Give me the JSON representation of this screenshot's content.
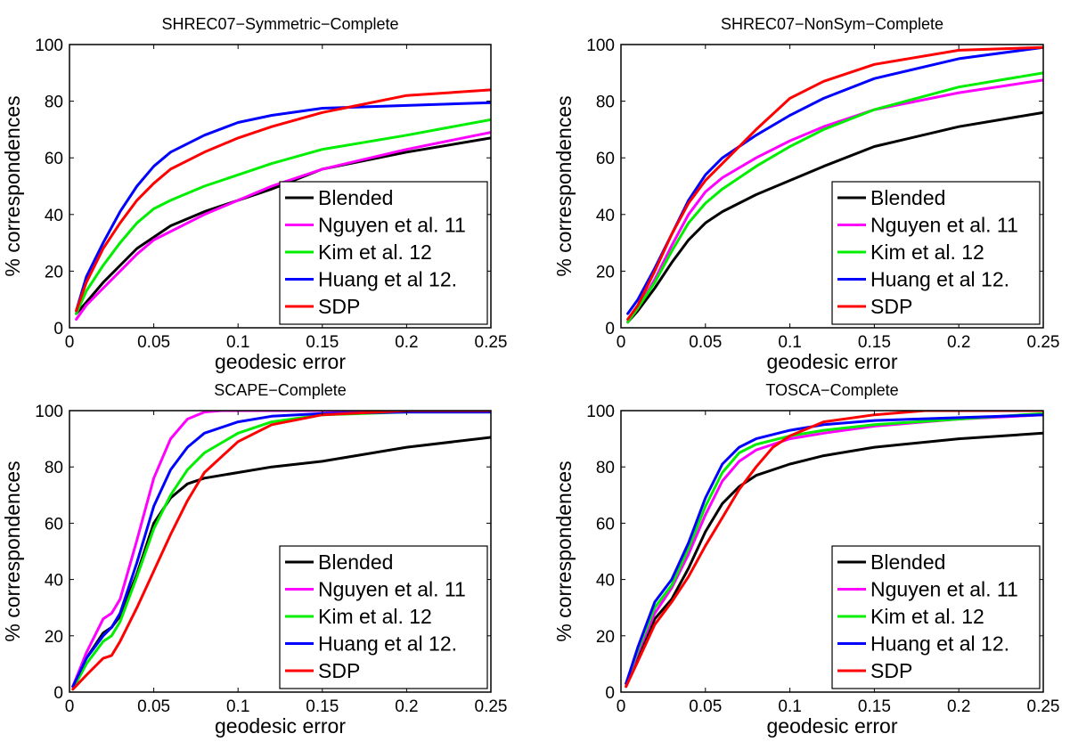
{
  "colors": {
    "Blended": "#000000",
    "Nguyen et al. 11": "#ff00ff",
    "Kim et al. 12": "#00ee00",
    "Huang et al 12.": "#0000ff",
    "SDP": "#ff0000"
  },
  "chart_data": [
    {
      "type": "line",
      "title": "SHREC07−Symmetric−Complete",
      "xlabel": "geodesic error",
      "ylabel": "% correspondences",
      "xlim": [
        0,
        0.25
      ],
      "ylim": [
        0,
        100
      ],
      "xticks": [
        "0",
        "0.05",
        "0.1",
        "0.15",
        "0.2",
        "0.25"
      ],
      "yticks": [
        "0",
        "20",
        "40",
        "60",
        "80",
        "100"
      ],
      "legend_position": "bottom-right",
      "grid": false,
      "series": [
        {
          "name": "Blended",
          "x": [
            0.004,
            0.01,
            0.02,
            0.03,
            0.04,
            0.05,
            0.06,
            0.08,
            0.1,
            0.12,
            0.15,
            0.2,
            0.25
          ],
          "y": [
            5,
            9,
            16,
            22,
            28,
            32,
            36,
            41,
            45,
            49,
            56,
            62,
            67
          ]
        },
        {
          "name": "Nguyen et al. 11",
          "x": [
            0.004,
            0.01,
            0.02,
            0.03,
            0.04,
            0.05,
            0.06,
            0.08,
            0.1,
            0.12,
            0.15,
            0.2,
            0.25
          ],
          "y": [
            3,
            8,
            14,
            20,
            26,
            31,
            34,
            40,
            45,
            50,
            56,
            63,
            69
          ]
        },
        {
          "name": "Kim et al. 12",
          "x": [
            0.004,
            0.01,
            0.02,
            0.03,
            0.04,
            0.05,
            0.06,
            0.08,
            0.1,
            0.12,
            0.15,
            0.2,
            0.25
          ],
          "y": [
            5,
            13,
            22,
            30,
            37,
            42,
            45,
            50,
            54,
            58,
            63,
            68,
            73.5
          ]
        },
        {
          "name": "Huang et al 12.",
          "x": [
            0.004,
            0.01,
            0.02,
            0.03,
            0.04,
            0.05,
            0.06,
            0.08,
            0.1,
            0.12,
            0.15,
            0.2,
            0.25
          ],
          "y": [
            6,
            18,
            30,
            41,
            50,
            57,
            62,
            68,
            72.5,
            75,
            77.5,
            78.5,
            79.5
          ]
        },
        {
          "name": "SDP",
          "x": [
            0.004,
            0.01,
            0.02,
            0.03,
            0.04,
            0.05,
            0.06,
            0.08,
            0.1,
            0.12,
            0.15,
            0.2,
            0.25
          ],
          "y": [
            6,
            16,
            28,
            37,
            45,
            51,
            56,
            62,
            67,
            71,
            76,
            82,
            84
          ]
        }
      ]
    },
    {
      "type": "line",
      "title": "SHREC07−NonSym−Complete",
      "xlabel": "geodesic error",
      "ylabel": "% correspondences",
      "xlim": [
        0,
        0.25
      ],
      "ylim": [
        0,
        100
      ],
      "xticks": [
        "0",
        "0.05",
        "0.1",
        "0.15",
        "0.2",
        "0.25"
      ],
      "yticks": [
        "0",
        "20",
        "40",
        "60",
        "80",
        "100"
      ],
      "legend_position": "bottom-right",
      "grid": false,
      "series": [
        {
          "name": "Blended",
          "x": [
            0.004,
            0.01,
            0.02,
            0.03,
            0.04,
            0.05,
            0.06,
            0.08,
            0.1,
            0.12,
            0.15,
            0.2,
            0.25
          ],
          "y": [
            2,
            6,
            14,
            23,
            31,
            37,
            41,
            47,
            52,
            57,
            64,
            71,
            76
          ]
        },
        {
          "name": "Nguyen et al. 11",
          "x": [
            0.004,
            0.01,
            0.02,
            0.03,
            0.04,
            0.05,
            0.06,
            0.08,
            0.1,
            0.12,
            0.15,
            0.2,
            0.25
          ],
          "y": [
            2,
            7,
            17,
            29,
            40,
            48,
            53,
            60,
            66,
            71,
            77,
            83,
            87.5
          ]
        },
        {
          "name": "Kim et al. 12",
          "x": [
            0.004,
            0.01,
            0.02,
            0.03,
            0.04,
            0.05,
            0.06,
            0.08,
            0.1,
            0.12,
            0.15,
            0.2,
            0.25
          ],
          "y": [
            2,
            7,
            16,
            27,
            37,
            44,
            49,
            57,
            64,
            70,
            77,
            85,
            90
          ]
        },
        {
          "name": "Huang et al 12.",
          "x": [
            0.004,
            0.01,
            0.02,
            0.03,
            0.04,
            0.05,
            0.06,
            0.08,
            0.1,
            0.12,
            0.15,
            0.2,
            0.25
          ],
          "y": [
            5,
            10,
            21,
            33,
            45,
            54,
            60,
            68,
            75,
            81,
            88,
            95,
            99
          ]
        },
        {
          "name": "SDP",
          "x": [
            0.004,
            0.01,
            0.02,
            0.03,
            0.04,
            0.05,
            0.06,
            0.08,
            0.1,
            0.12,
            0.15,
            0.2,
            0.25
          ],
          "y": [
            3,
            8,
            20,
            33,
            44,
            52,
            58,
            70,
            81,
            87,
            93,
            98,
            99
          ]
        }
      ]
    },
    {
      "type": "line",
      "title": "SCAPE−Complete",
      "xlabel": "geodesic error",
      "ylabel": "% correspondences",
      "xlim": [
        0,
        0.25
      ],
      "ylim": [
        0,
        100
      ],
      "xticks": [
        "0",
        "0.05",
        "0.1",
        "0.15",
        "0.2",
        "0.25"
      ],
      "yticks": [
        "0",
        "20",
        "40",
        "60",
        "80",
        "100"
      ],
      "legend_position": "bottom-right",
      "grid": false,
      "series": [
        {
          "name": "Blended",
          "x": [
            0.002,
            0.01,
            0.02,
            0.025,
            0.03,
            0.04,
            0.05,
            0.06,
            0.07,
            0.08,
            0.1,
            0.12,
            0.15,
            0.2,
            0.25
          ],
          "y": [
            2,
            12,
            21,
            23,
            27,
            42,
            60,
            69,
            74,
            76,
            78,
            80,
            82,
            87,
            90.5
          ]
        },
        {
          "name": "Nguyen et al. 11",
          "x": [
            0.002,
            0.01,
            0.02,
            0.025,
            0.03,
            0.04,
            0.05,
            0.06,
            0.07,
            0.08,
            0.09,
            0.1,
            0.15,
            0.25
          ],
          "y": [
            2,
            14,
            26,
            28,
            33,
            54,
            76,
            90,
            97,
            99.5,
            100,
            100,
            100,
            100
          ]
        },
        {
          "name": "Kim et al. 12",
          "x": [
            0.002,
            0.01,
            0.02,
            0.025,
            0.03,
            0.04,
            0.05,
            0.06,
            0.07,
            0.08,
            0.1,
            0.12,
            0.15,
            0.2,
            0.25
          ],
          "y": [
            1,
            10,
            18,
            20,
            25,
            41,
            58,
            70,
            79,
            85,
            92,
            96,
            98.5,
            99.5,
            99.5
          ]
        },
        {
          "name": "Huang et al 12.",
          "x": [
            0.002,
            0.01,
            0.02,
            0.025,
            0.03,
            0.04,
            0.05,
            0.06,
            0.07,
            0.08,
            0.1,
            0.12,
            0.15,
            0.2,
            0.25
          ],
          "y": [
            2,
            12,
            20,
            23,
            28,
            46,
            66,
            79,
            87,
            92,
            96,
            98,
            99,
            99.5,
            99.5
          ]
        },
        {
          "name": "SDP",
          "x": [
            0.002,
            0.01,
            0.02,
            0.025,
            0.03,
            0.04,
            0.05,
            0.06,
            0.07,
            0.08,
            0.1,
            0.12,
            0.15,
            0.2,
            0.25
          ],
          "y": [
            1,
            6,
            12,
            13,
            18,
            30,
            43,
            56,
            68,
            78,
            89,
            95,
            98.5,
            100,
            100
          ]
        }
      ]
    },
    {
      "type": "line",
      "title": "TOSCA−Complete",
      "xlabel": "geodesic error",
      "ylabel": "% correspondences",
      "xlim": [
        0,
        0.25
      ],
      "ylim": [
        0,
        100
      ],
      "xticks": [
        "0",
        "0.05",
        "0.1",
        "0.15",
        "0.2",
        "0.25"
      ],
      "yticks": [
        "0",
        "20",
        "40",
        "60",
        "80",
        "100"
      ],
      "legend_position": "bottom-right",
      "grid": false,
      "series": [
        {
          "name": "Blended",
          "x": [
            0.003,
            0.01,
            0.02,
            0.03,
            0.04,
            0.05,
            0.06,
            0.07,
            0.08,
            0.1,
            0.12,
            0.15,
            0.2,
            0.25
          ],
          "y": [
            2,
            12,
            26,
            33,
            44,
            57,
            67,
            73,
            77,
            81,
            84,
            87,
            90,
            92
          ]
        },
        {
          "name": "Nguyen et al. 11",
          "x": [
            0.003,
            0.01,
            0.02,
            0.03,
            0.04,
            0.05,
            0.06,
            0.07,
            0.08,
            0.1,
            0.12,
            0.15,
            0.2,
            0.25
          ],
          "y": [
            3,
            14,
            28,
            37,
            49,
            63,
            75,
            82,
            86,
            90,
            92,
            94.5,
            97,
            98.5
          ]
        },
        {
          "name": "Kim et al. 12",
          "x": [
            0.003,
            0.01,
            0.02,
            0.03,
            0.04,
            0.05,
            0.06,
            0.07,
            0.08,
            0.1,
            0.12,
            0.15,
            0.2,
            0.25
          ],
          "y": [
            3,
            15,
            30,
            38,
            51,
            66,
            78,
            85,
            88,
            91,
            93,
            95,
            97,
            99
          ]
        },
        {
          "name": "Huang et al 12.",
          "x": [
            0.003,
            0.01,
            0.02,
            0.03,
            0.04,
            0.05,
            0.06,
            0.07,
            0.08,
            0.1,
            0.12,
            0.15,
            0.2,
            0.25
          ],
          "y": [
            3,
            16,
            32,
            40,
            53,
            69,
            81,
            87,
            90,
            93,
            95,
            96.5,
            97.5,
            98.5
          ]
        },
        {
          "name": "SDP",
          "x": [
            0.003,
            0.01,
            0.02,
            0.03,
            0.04,
            0.05,
            0.06,
            0.07,
            0.08,
            0.09,
            0.1,
            0.12,
            0.15,
            0.18,
            0.25
          ],
          "y": [
            2,
            11,
            24,
            32,
            41,
            52,
            62,
            72,
            80,
            87,
            91,
            96,
            98.5,
            100,
            100
          ]
        }
      ]
    }
  ]
}
